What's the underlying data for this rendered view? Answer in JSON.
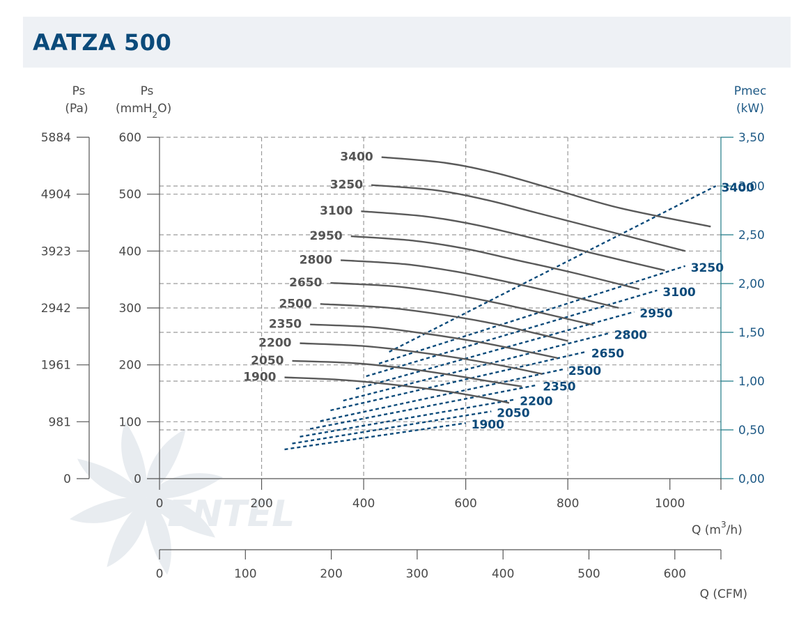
{
  "title": "AATZA 500",
  "colors": {
    "header_bg": "#eef1f5",
    "title": "#0b4a7a",
    "pressure_curve": "#5a5a5a",
    "power_curve": "#0b4a7a",
    "grid": "#9a9a9a",
    "right_axis": "#1f7a86",
    "watermark": "#e8ecf0"
  },
  "axes": {
    "ps_pa": {
      "label_line1": "Ps",
      "label_line2": "(Pa)",
      "ticks": [
        "5884",
        "4904",
        "3923",
        "2942",
        "1961",
        "981",
        "0"
      ]
    },
    "ps_mmh2o": {
      "label_line1": "Ps",
      "label_line2": "(mmH",
      "label_sub": "2",
      "label_end": "O)",
      "ticks": [
        "600",
        "500",
        "400",
        "300",
        "200",
        "100",
        "0"
      ]
    },
    "pmec": {
      "label_line1": "Pmec",
      "label_line2": "(kW)",
      "ticks": [
        "3,50",
        "3,00",
        "2,50",
        "2,00",
        "1,50",
        "1,00",
        "0,50",
        "0,00"
      ]
    },
    "q_m3h": {
      "label": "Q (m",
      "label_sup": "3",
      "label_end": "/h)",
      "ticks": [
        "0",
        "200",
        "400",
        "600",
        "800",
        "1000"
      ]
    },
    "q_cfm": {
      "label": "Q (CFM)",
      "ticks": [
        "0",
        "100",
        "200",
        "300",
        "400",
        "500",
        "600"
      ]
    }
  },
  "watermark": "VENTEL",
  "chart_data": {
    "type": "line",
    "title": "AATZA 500",
    "x_unit": "Q (m3/h)",
    "xlim": [
      0,
      1100
    ],
    "ylim_left": [
      0,
      600
    ],
    "ylim_right": [
      0,
      3.5
    ],
    "grid": true,
    "pressure_series": [
      {
        "name": "1900",
        "x": [
          245,
          350,
          450,
          550,
          600,
          650,
          685
        ],
        "y": [
          178,
          174,
          166,
          155,
          148,
          140,
          133
        ]
      },
      {
        "name": "2050",
        "x": [
          260,
          380,
          480,
          580,
          640,
          710
        ],
        "y": [
          207,
          203,
          194,
          181,
          172,
          162
        ]
      },
      {
        "name": "2200",
        "x": [
          275,
          400,
          500,
          600,
          680,
          750
        ],
        "y": [
          238,
          233,
          223,
          210,
          197,
          184
        ]
      },
      {
        "name": "2350",
        "x": [
          295,
          420,
          520,
          620,
          700,
          780
        ],
        "y": [
          271,
          266,
          255,
          241,
          227,
          212
        ]
      },
      {
        "name": "2500",
        "x": [
          315,
          440,
          540,
          640,
          720,
          800
        ],
        "y": [
          307,
          301,
          290,
          275,
          259,
          242
        ]
      },
      {
        "name": "2650",
        "x": [
          335,
          460,
          560,
          660,
          750,
          850
        ],
        "y": [
          344,
          338,
          326,
          309,
          291,
          270
        ]
      },
      {
        "name": "2800",
        "x": [
          355,
          480,
          580,
          680,
          780,
          900
        ],
        "y": [
          384,
          377,
          364,
          346,
          326,
          300
        ]
      },
      {
        "name": "2950",
        "x": [
          375,
          500,
          600,
          700,
          810,
          940
        ],
        "y": [
          426,
          418,
          404,
          384,
          362,
          333
        ]
      },
      {
        "name": "3100",
        "x": [
          395,
          520,
          620,
          720,
          840,
          990
        ],
        "y": [
          470,
          461,
          446,
          425,
          398,
          366
        ]
      },
      {
        "name": "3250",
        "x": [
          415,
          540,
          640,
          740,
          870,
          1030
        ],
        "y": [
          516,
          507,
          490,
          467,
          437,
          400
        ]
      },
      {
        "name": "3400",
        "x": [
          435,
          560,
          660,
          760,
          900,
          1080
        ],
        "y": [
          565,
          555,
          537,
          512,
          476,
          443
        ]
      }
    ],
    "power_series": [
      {
        "name": "1900",
        "x": [
          245,
          600
        ],
        "y": [
          0.3,
          0.57
        ]
      },
      {
        "name": "2050",
        "x": [
          260,
          650
        ],
        "y": [
          0.36,
          0.69
        ]
      },
      {
        "name": "2200",
        "x": [
          275,
          695
        ],
        "y": [
          0.43,
          0.81
        ]
      },
      {
        "name": "2350",
        "x": [
          295,
          740
        ],
        "y": [
          0.51,
          0.96
        ]
      },
      {
        "name": "2500",
        "x": [
          315,
          790
        ],
        "y": [
          0.59,
          1.12
        ]
      },
      {
        "name": "2650",
        "x": [
          335,
          835
        ],
        "y": [
          0.7,
          1.3
        ]
      },
      {
        "name": "2800",
        "x": [
          360,
          880
        ],
        "y": [
          0.8,
          1.49
        ]
      },
      {
        "name": "2950",
        "x": [
          385,
          930
        ],
        "y": [
          0.92,
          1.71
        ]
      },
      {
        "name": "3100",
        "x": [
          405,
          975
        ],
        "y": [
          1.05,
          1.93
        ]
      },
      {
        "name": "3250",
        "x": [
          430,
          1030
        ],
        "y": [
          1.18,
          2.18
        ]
      },
      {
        "name": "3400",
        "x": [
          450,
          1090
        ],
        "y": [
          1.3,
          3.0
        ]
      }
    ]
  }
}
